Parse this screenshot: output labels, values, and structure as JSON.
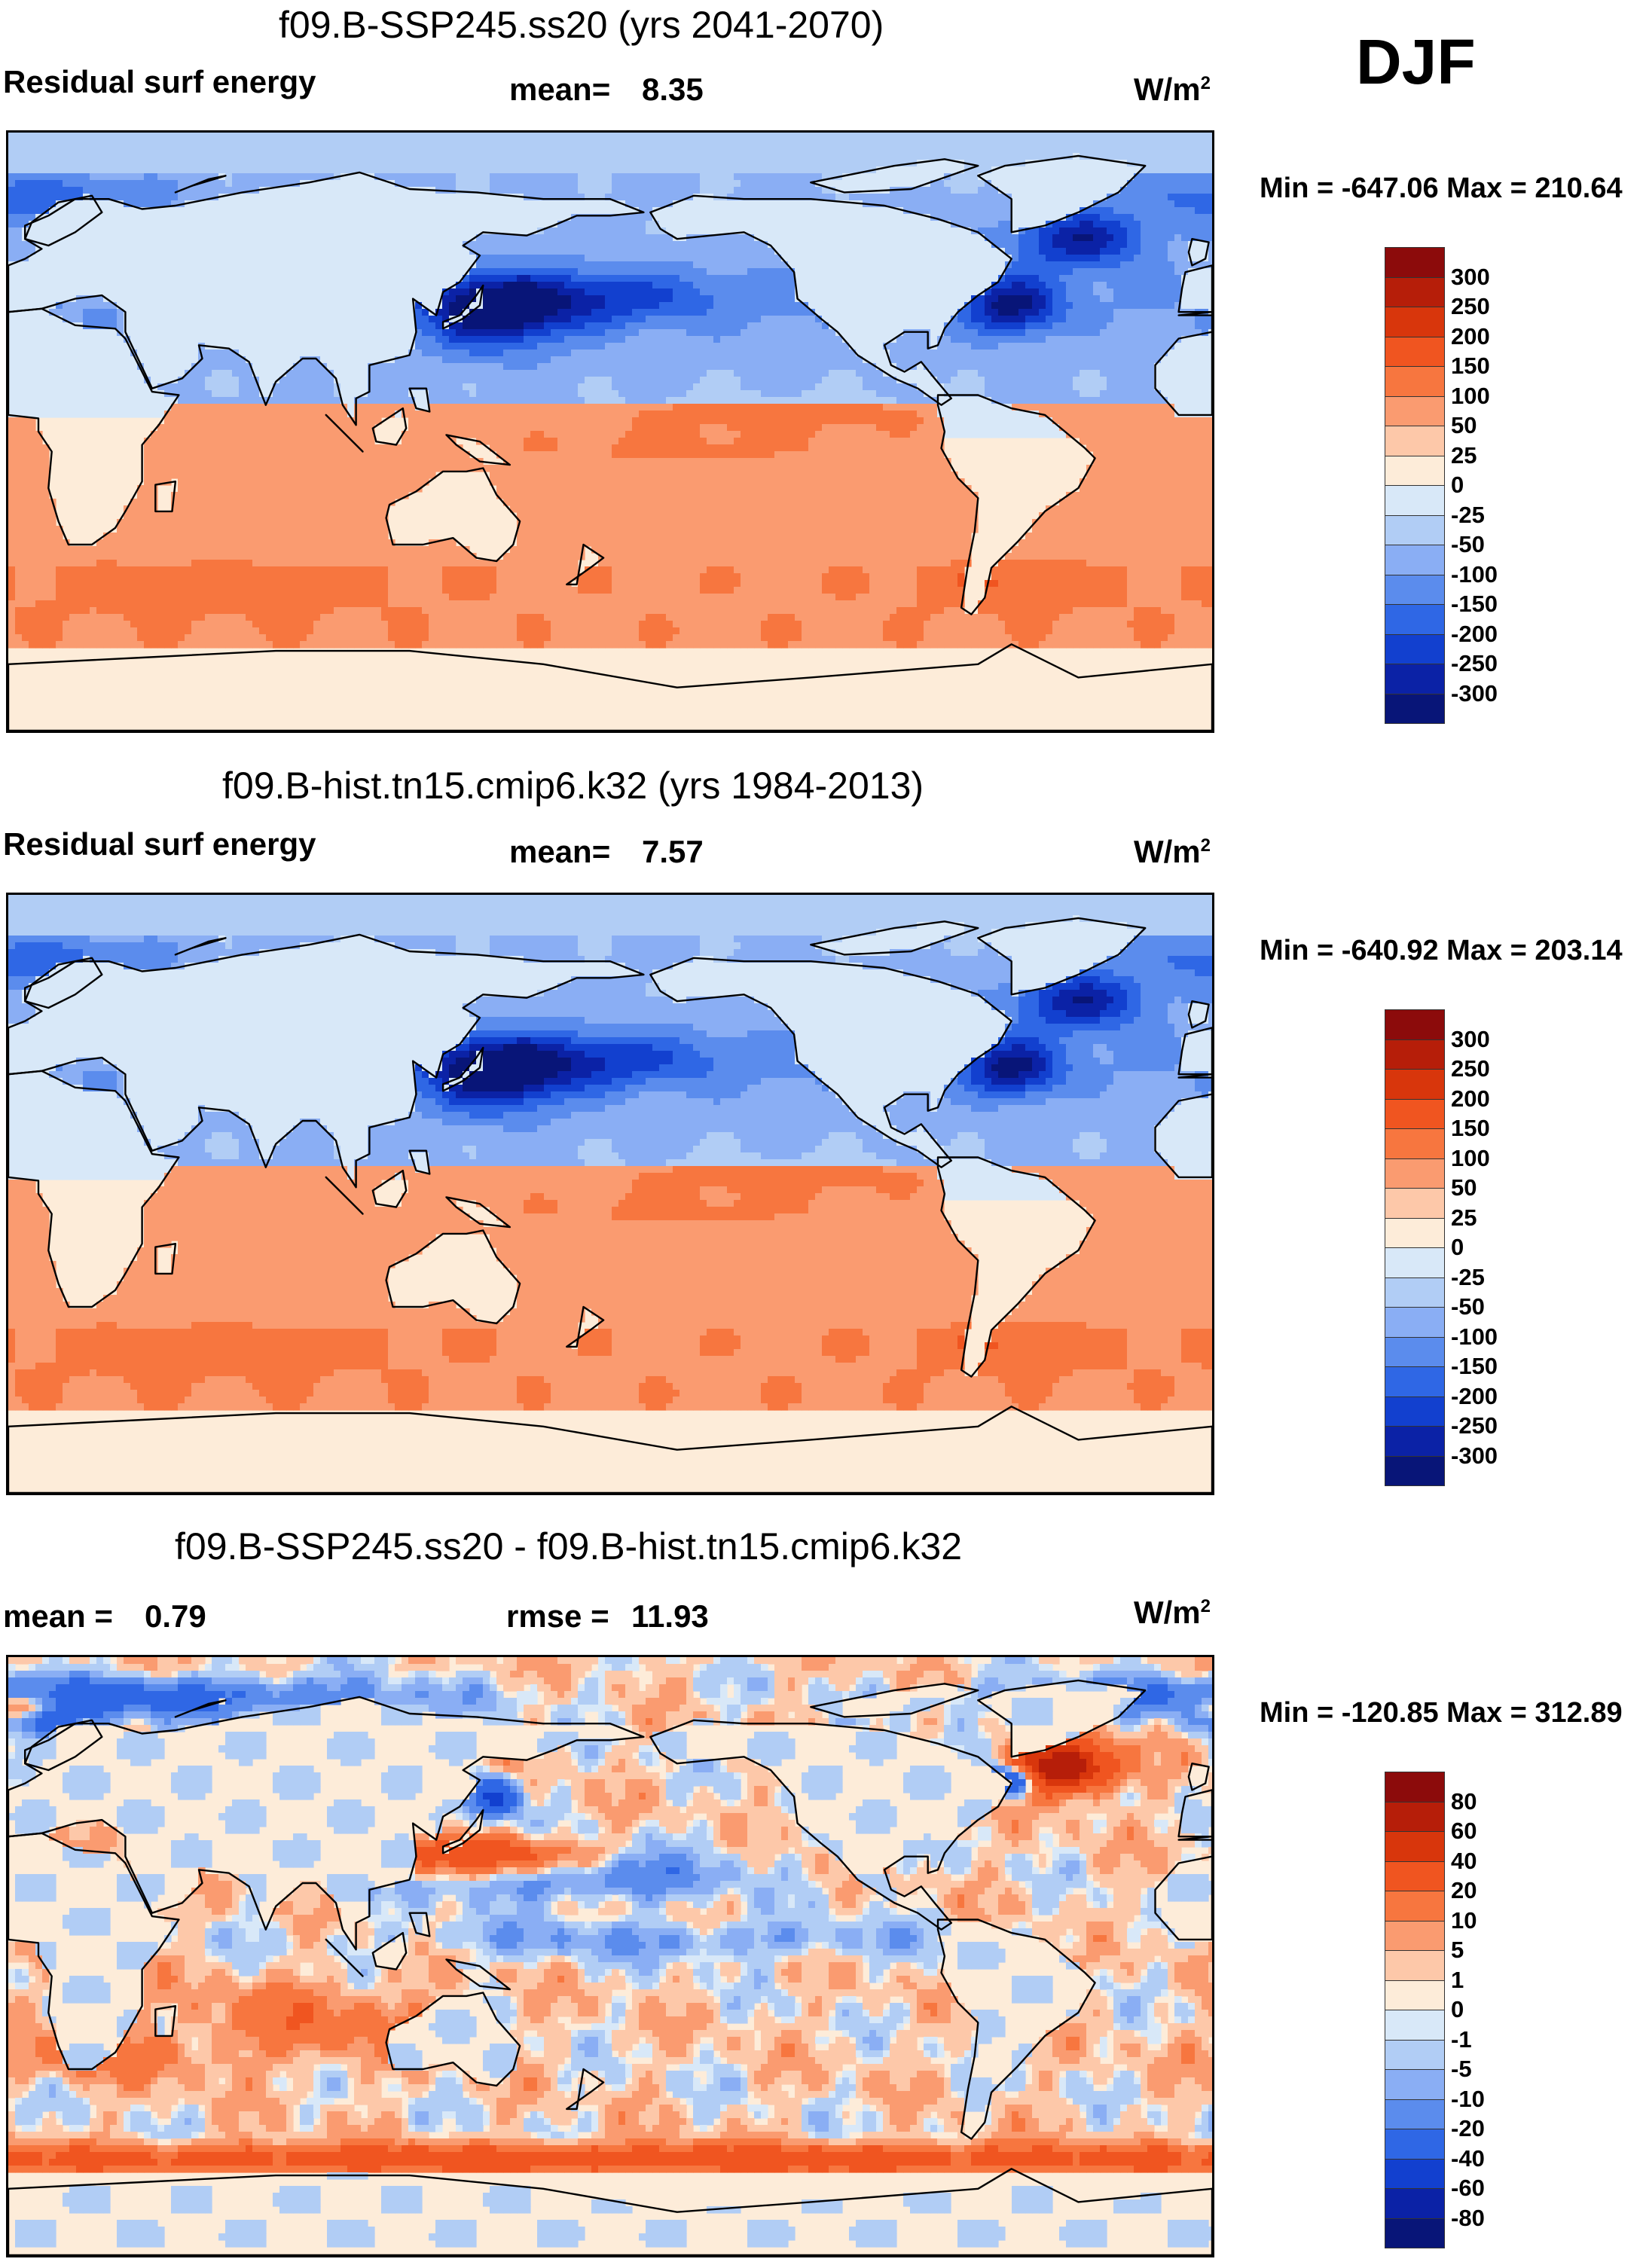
{
  "season": "DJF",
  "units_base": "W/m",
  "units_exp": "2",
  "panels": [
    {
      "title": "f09.B-SSP245.ss20 (yrs 2041-2070)",
      "left_label": "Residual surf energy",
      "stat1_label": "mean=",
      "stat1_value": "8.35",
      "minmax": "Min = -647.06 Max = 210.64",
      "colorbar": {
        "levels": [
          "300",
          "250",
          "200",
          "150",
          "100",
          "50",
          "25",
          "0",
          "-25",
          "-50",
          "-100",
          "-150",
          "-200",
          "-250",
          "-300"
        ],
        "colors": [
          "#8c0b0b",
          "#b61e09",
          "#d8360c",
          "#f05520",
          "#f7763f",
          "#fa9b70",
          "#fdc8a9",
          "#fdecd9",
          "#d8e8f8",
          "#b1cdf5",
          "#8aaef4",
          "#5b8ced",
          "#2f67e5",
          "#1240cf",
          "#0b22a6",
          "#081578"
        ]
      },
      "field": "warm"
    },
    {
      "title": "f09.B-hist.tn15.cmip6.k32 (yrs 1984-2013)",
      "left_label": "Residual surf energy",
      "stat1_label": "mean=",
      "stat1_value": "7.57",
      "minmax": "Min = -640.92 Max = 203.14",
      "colorbar": {
        "levels": [
          "300",
          "250",
          "200",
          "150",
          "100",
          "50",
          "25",
          "0",
          "-25",
          "-50",
          "-100",
          "-150",
          "-200",
          "-250",
          "-300"
        ],
        "colors": [
          "#8c0b0b",
          "#b61e09",
          "#d8360c",
          "#f05520",
          "#f7763f",
          "#fa9b70",
          "#fdc8a9",
          "#fdecd9",
          "#d8e8f8",
          "#b1cdf5",
          "#8aaef4",
          "#5b8ced",
          "#2f67e5",
          "#1240cf",
          "#0b22a6",
          "#081578"
        ]
      },
      "field": "warm"
    },
    {
      "title": "f09.B-SSP245.ss20 - f09.B-hist.tn15.cmip6.k32",
      "left_label": "mean =",
      "left_value": "0.79",
      "stat1_label": "rmse =",
      "stat1_value": "11.93",
      "minmax": "Min = -120.85 Max = 312.89",
      "colorbar": {
        "levels": [
          "80",
          "60",
          "40",
          "20",
          "10",
          "5",
          "1",
          "0",
          "-1",
          "-5",
          "-10",
          "-20",
          "-40",
          "-60",
          "-80"
        ],
        "colors": [
          "#8c0b0b",
          "#b61e09",
          "#d8360c",
          "#f05520",
          "#f7763f",
          "#fa9b70",
          "#fdc8a9",
          "#fdecd9",
          "#d8e8f8",
          "#b1cdf5",
          "#8aaef4",
          "#5b8ced",
          "#2f67e5",
          "#1240cf",
          "#0b22a6",
          "#081578"
        ]
      },
      "field": "diff"
    }
  ]
}
